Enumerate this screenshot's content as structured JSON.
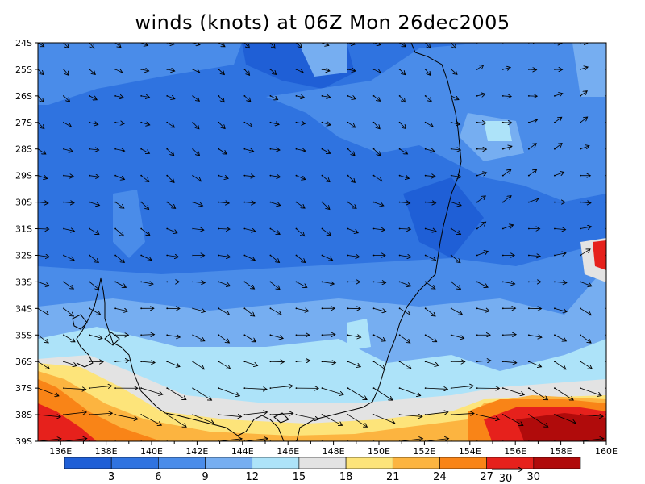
{
  "title": "winds (knots) at 06Z Mon 26dec2005",
  "colors": {
    "levels": [
      "#1f5fd6",
      "#2f73e0",
      "#4a8ce9",
      "#76aef1",
      "#ade3f9",
      "#e3e3e3",
      "#fde47a",
      "#fcb440",
      "#f98417",
      "#e6211c",
      "#b00b0b"
    ],
    "coast": "#000000",
    "arrow": "#000000"
  },
  "lat_labels": [
    "24S",
    "25S",
    "26S",
    "27S",
    "28S",
    "29S",
    "30S",
    "31S",
    "32S",
    "33S",
    "34S",
    "35S",
    "36S",
    "37S",
    "38S",
    "39S"
  ],
  "lon_labels": [
    "136E",
    "138E",
    "140E",
    "142E",
    "144E",
    "146E",
    "148E",
    "150E",
    "152E",
    "154E",
    "156E",
    "158E",
    "160E"
  ],
  "colorbar": {
    "labels": [
      "3",
      "6",
      "9",
      "12",
      "15",
      "18",
      "21",
      "24",
      "27",
      "30"
    ],
    "reference_vector_label": "30"
  }
}
